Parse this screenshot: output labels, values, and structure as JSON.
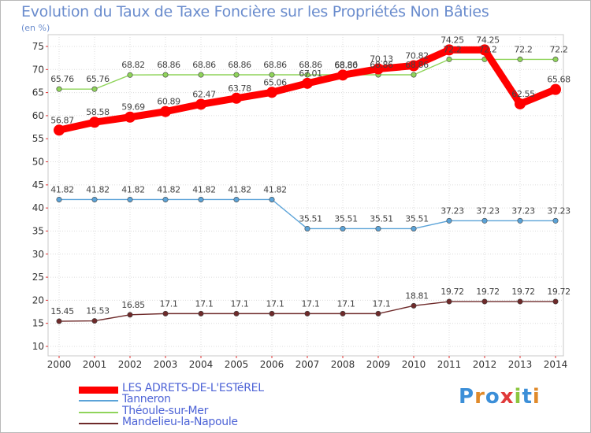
{
  "header": {
    "title": "Evolution du Taux de Taxe Foncière sur les Propriétés Non Bâties",
    "unit": "(en %)"
  },
  "chart_data": {
    "type": "line",
    "title": "Evolution du Taux de Taxe Foncière sur les Propriétés Non Bâties",
    "ylabel": "(en %)",
    "xlabel": "",
    "ylim": [
      10,
      75
    ],
    "yticks": [
      10,
      15,
      20,
      25,
      30,
      35,
      40,
      45,
      50,
      55,
      60,
      65,
      70,
      75
    ],
    "grid": true,
    "legend_position": "bottom-left",
    "categories": [
      "2000",
      "2001",
      "2002",
      "2003",
      "2004",
      "2005",
      "2006",
      "2007",
      "2008",
      "2009",
      "2010",
      "2011",
      "2012",
      "2013",
      "2014"
    ],
    "series": [
      {
        "name": "LES ADRETS-DE-L'ESTéREL",
        "color": "#ff0000",
        "emphasis": true,
        "values": [
          56.87,
          58.58,
          59.69,
          60.89,
          62.47,
          63.78,
          65.06,
          67.01,
          68.8,
          70.13,
          70.82,
          74.25,
          74.25,
          62.55,
          65.68
        ],
        "labels": [
          "56.87",
          "58.58",
          "59.69",
          "60.89",
          "62.47",
          "63.78",
          "65.06",
          "67.01",
          "68.80",
          "70.13",
          "70.82",
          "74.25",
          "74.25",
          "62.55",
          "65.68"
        ]
      },
      {
        "name": "Tanneron",
        "color": "#5ba3d8",
        "values": [
          41.82,
          41.82,
          41.82,
          41.82,
          41.82,
          41.82,
          41.82,
          35.51,
          35.51,
          35.51,
          35.51,
          37.23,
          37.23,
          37.23,
          37.23
        ],
        "labels": [
          "41.82",
          "41.82",
          "41.82",
          "41.82",
          "41.82",
          "41.82",
          "41.82",
          "35.51",
          "35.51",
          "35.51",
          "35.51",
          "37.23",
          "37.23",
          "37.23",
          "37.23"
        ]
      },
      {
        "name": "Théoule-sur-Mer",
        "color": "#8fd45a",
        "values": [
          65.76,
          65.76,
          68.82,
          68.86,
          68.86,
          68.86,
          68.86,
          68.86,
          68.86,
          68.86,
          68.86,
          72.2,
          72.2,
          72.2,
          72.2
        ],
        "labels": [
          "65.76",
          "65.76",
          "68.82",
          "68.86",
          "68.86",
          "68.86",
          "68.86",
          "68.86",
          "68.86",
          "68.86",
          "68.86",
          "72.2",
          "72.2",
          "72.2",
          "72.2"
        ]
      },
      {
        "name": "Mandelieu-la-Napoule",
        "color": "#6e2a2a",
        "values": [
          15.45,
          15.53,
          16.85,
          17.1,
          17.1,
          17.1,
          17.1,
          17.1,
          17.1,
          17.1,
          18.81,
          19.72,
          19.72,
          19.72,
          19.72
        ],
        "labels": [
          "15.45",
          "15.53",
          "16.85",
          "17.1",
          "17.1",
          "17.1",
          "17.1",
          "17.1",
          "17.1",
          "17.1",
          "18.81",
          "19.72",
          "19.72",
          "19.72",
          "19.72"
        ]
      }
    ]
  },
  "logo": {
    "text": "Proxiti"
  }
}
